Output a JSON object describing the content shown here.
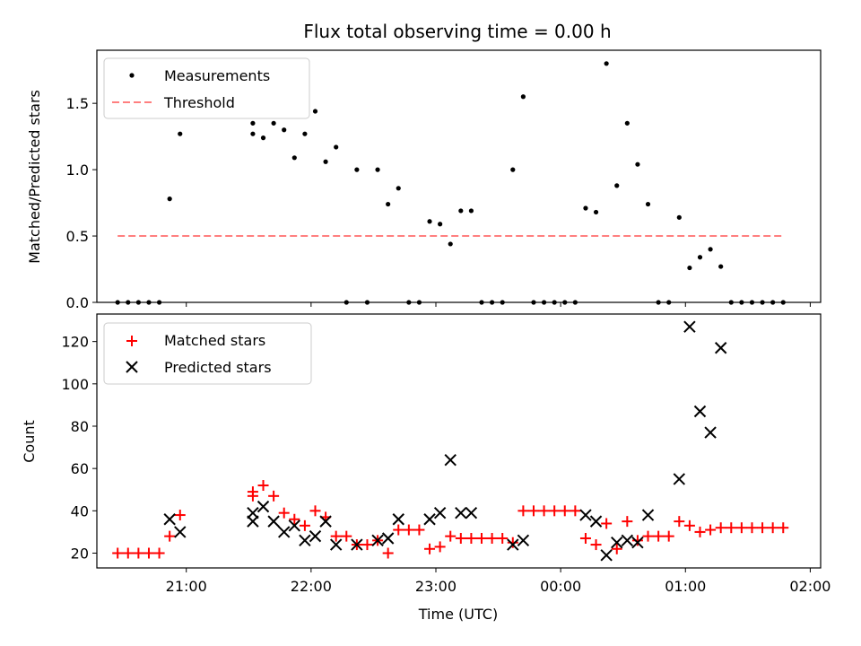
{
  "chart_data": [
    {
      "type": "scatter",
      "title": "Flux total observing time = 0.00 h",
      "xlabel": "",
      "ylabel": "Matched/Predicted stars",
      "ylim": [
        0,
        1.9
      ],
      "yticks": [
        0.0,
        0.5,
        1.0,
        1.5
      ],
      "ytick_labels": [
        "0.0",
        "0.5",
        "1.0",
        "1.5"
      ],
      "xlim": [
        "20:17",
        "02:05"
      ],
      "grid": false,
      "legend_position": "top-left",
      "threshold": {
        "name": "Threshold",
        "value": 0.5,
        "x_range": [
          "20:27",
          "01:47"
        ],
        "color": "#ff7f7f"
      },
      "series": [
        {
          "name": "Measurements",
          "color": "#000000",
          "marker": "dot",
          "points": [
            [
              "20:27",
              0.0
            ],
            [
              "20:32",
              0.0
            ],
            [
              "20:37",
              0.0
            ],
            [
              "20:42",
              0.0
            ],
            [
              "20:47",
              0.0
            ],
            [
              "20:52",
              0.78
            ],
            [
              "20:57",
              1.27
            ],
            [
              "21:32",
              1.35
            ],
            [
              "21:32",
              1.27
            ],
            [
              "21:37",
              1.24
            ],
            [
              "21:42",
              1.35
            ],
            [
              "21:47",
              1.3
            ],
            [
              "21:52",
              1.09
            ],
            [
              "21:57",
              1.27
            ],
            [
              "22:02",
              1.44
            ],
            [
              "22:07",
              1.06
            ],
            [
              "22:12",
              1.17
            ],
            [
              "22:17",
              0.0
            ],
            [
              "22:22",
              1.0
            ],
            [
              "22:27",
              0.0
            ],
            [
              "22:32",
              1.0
            ],
            [
              "22:37",
              0.74
            ],
            [
              "22:42",
              0.86
            ],
            [
              "22:47",
              0.0
            ],
            [
              "22:52",
              0.0
            ],
            [
              "22:57",
              0.61
            ],
            [
              "23:02",
              0.59
            ],
            [
              "23:07",
              0.44
            ],
            [
              "23:12",
              0.69
            ],
            [
              "23:17",
              0.69
            ],
            [
              "23:22",
              0.0
            ],
            [
              "23:27",
              0.0
            ],
            [
              "23:32",
              0.0
            ],
            [
              "23:37",
              1.0
            ],
            [
              "23:42",
              1.55
            ],
            [
              "23:47",
              0.0
            ],
            [
              "23:52",
              0.0
            ],
            [
              "23:57",
              0.0
            ],
            [
              "00:02",
              0.0
            ],
            [
              "00:07",
              0.0
            ],
            [
              "00:12",
              0.71
            ],
            [
              "00:17",
              0.68
            ],
            [
              "00:22",
              1.8
            ],
            [
              "00:27",
              0.88
            ],
            [
              "00:32",
              1.35
            ],
            [
              "00:37",
              1.04
            ],
            [
              "00:42",
              0.74
            ],
            [
              "00:47",
              0.0
            ],
            [
              "00:52",
              0.0
            ],
            [
              "00:57",
              0.64
            ],
            [
              "01:02",
              0.26
            ],
            [
              "01:07",
              0.34
            ],
            [
              "01:12",
              0.4
            ],
            [
              "01:17",
              0.27
            ],
            [
              "01:22",
              0.0
            ],
            [
              "01:27",
              0.0
            ],
            [
              "01:32",
              0.0
            ],
            [
              "01:37",
              0.0
            ],
            [
              "01:42",
              0.0
            ],
            [
              "01:47",
              0.0
            ]
          ]
        }
      ]
    },
    {
      "type": "scatter",
      "title": "",
      "xlabel": "Time (UTC)",
      "ylabel": "Count",
      "ylim": [
        13,
        133
      ],
      "yticks": [
        20,
        40,
        60,
        80,
        100,
        120
      ],
      "ytick_labels": [
        "20",
        "40",
        "60",
        "80",
        "100",
        "120"
      ],
      "xlim": [
        "20:17",
        "02:05"
      ],
      "xticks": [
        "21:00",
        "22:00",
        "23:00",
        "00:00",
        "01:00",
        "02:00"
      ],
      "xtick_labels": [
        "21:00",
        "22:00",
        "23:00",
        "00:00",
        "01:00",
        "02:00"
      ],
      "grid": false,
      "legend_position": "top-left",
      "series": [
        {
          "name": "Matched stars",
          "color": "#ff0000",
          "marker": "plus",
          "points": [
            [
              "20:27",
              20
            ],
            [
              "20:32",
              20
            ],
            [
              "20:37",
              20
            ],
            [
              "20:42",
              20
            ],
            [
              "20:47",
              20
            ],
            [
              "20:52",
              28
            ],
            [
              "20:57",
              38
            ],
            [
              "21:32",
              47
            ],
            [
              "21:32",
              49
            ],
            [
              "21:37",
              52
            ],
            [
              "21:42",
              47
            ],
            [
              "21:47",
              39
            ],
            [
              "21:52",
              36
            ],
            [
              "21:57",
              33
            ],
            [
              "22:02",
              40
            ],
            [
              "22:07",
              37
            ],
            [
              "22:12",
              28
            ],
            [
              "22:17",
              28
            ],
            [
              "22:22",
              24
            ],
            [
              "22:27",
              24
            ],
            [
              "22:32",
              26
            ],
            [
              "22:37",
              20
            ],
            [
              "22:42",
              31
            ],
            [
              "22:47",
              31
            ],
            [
              "22:52",
              31
            ],
            [
              "22:57",
              22
            ],
            [
              "23:02",
              23
            ],
            [
              "23:07",
              28
            ],
            [
              "23:12",
              27
            ],
            [
              "23:17",
              27
            ],
            [
              "23:22",
              27
            ],
            [
              "23:27",
              27
            ],
            [
              "23:32",
              27
            ],
            [
              "23:37",
              25
            ],
            [
              "23:42",
              40
            ],
            [
              "23:47",
              40
            ],
            [
              "23:52",
              40
            ],
            [
              "23:57",
              40
            ],
            [
              "00:02",
              40
            ],
            [
              "00:07",
              40
            ],
            [
              "00:12",
              27
            ],
            [
              "00:17",
              24
            ],
            [
              "00:22",
              34
            ],
            [
              "00:27",
              22
            ],
            [
              "00:32",
              35
            ],
            [
              "00:37",
              26
            ],
            [
              "00:42",
              28
            ],
            [
              "00:47",
              28
            ],
            [
              "00:52",
              28
            ],
            [
              "00:57",
              35
            ],
            [
              "01:02",
              33
            ],
            [
              "01:07",
              30
            ],
            [
              "01:12",
              31
            ],
            [
              "01:17",
              32
            ],
            [
              "01:22",
              32
            ],
            [
              "01:27",
              32
            ],
            [
              "01:32",
              32
            ],
            [
              "01:37",
              32
            ],
            [
              "01:42",
              32
            ],
            [
              "01:47",
              32
            ]
          ]
        },
        {
          "name": "Predicted stars",
          "color": "#000000",
          "marker": "x",
          "points": [
            [
              "20:52",
              36
            ],
            [
              "20:57",
              30
            ],
            [
              "21:32",
              35
            ],
            [
              "21:32",
              39
            ],
            [
              "21:37",
              42
            ],
            [
              "21:42",
              35
            ],
            [
              "21:47",
              30
            ],
            [
              "21:52",
              33
            ],
            [
              "21:57",
              26
            ],
            [
              "22:02",
              28
            ],
            [
              "22:07",
              35
            ],
            [
              "22:12",
              24
            ],
            [
              "22:22",
              24
            ],
            [
              "22:32",
              26
            ],
            [
              "22:37",
              27
            ],
            [
              "22:42",
              36
            ],
            [
              "22:57",
              36
            ],
            [
              "23:02",
              39
            ],
            [
              "23:07",
              64
            ],
            [
              "23:12",
              39
            ],
            [
              "23:17",
              39
            ],
            [
              "23:37",
              24
            ],
            [
              "23:42",
              26
            ],
            [
              "00:12",
              38
            ],
            [
              "00:17",
              35
            ],
            [
              "00:22",
              19
            ],
            [
              "00:27",
              25
            ],
            [
              "00:32",
              26
            ],
            [
              "00:37",
              25
            ],
            [
              "00:42",
              38
            ],
            [
              "00:57",
              55
            ],
            [
              "01:02",
              127
            ],
            [
              "01:07",
              87
            ],
            [
              "01:12",
              77
            ],
            [
              "01:17",
              117
            ]
          ]
        }
      ]
    }
  ]
}
